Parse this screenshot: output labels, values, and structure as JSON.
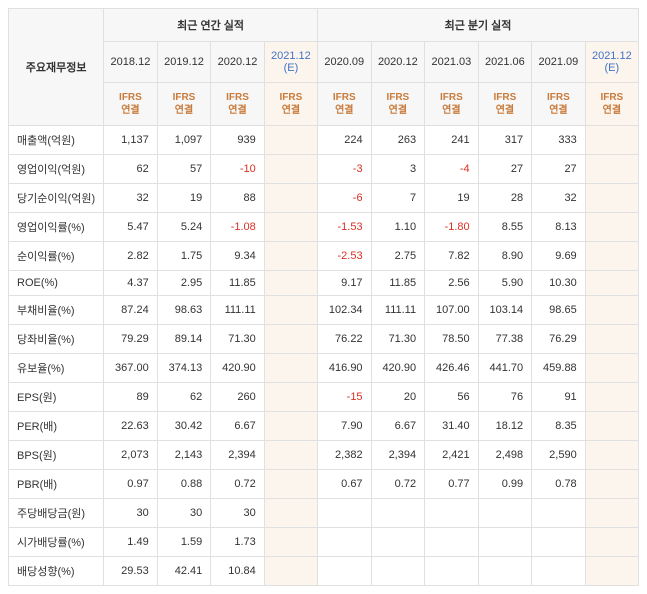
{
  "header": {
    "rowLabelTitle": "주요재무정보",
    "annualTitle": "최근 연간 실적",
    "quarterTitle": "최근 분기 실적",
    "ifrs": "IFRS",
    "consol": "연결"
  },
  "annualPeriods": [
    "2018.12",
    "2019.12",
    "2020.12",
    "2021.12 (E)"
  ],
  "annualHighlight": [
    false,
    false,
    false,
    true
  ],
  "annualEstimate": [
    false,
    false,
    false,
    true
  ],
  "quarterPeriods": [
    "2020.09",
    "2020.12",
    "2021.03",
    "2021.06",
    "2021.09",
    "2021.12 (E)"
  ],
  "quarterHighlight": [
    false,
    false,
    false,
    false,
    false,
    true
  ],
  "quarterEstimate": [
    false,
    false,
    false,
    false,
    false,
    true
  ],
  "rows": [
    {
      "label": "매출액(억원)",
      "annual": [
        "1,137",
        "1,097",
        "939",
        ""
      ],
      "quarter": [
        "224",
        "263",
        "241",
        "317",
        "333",
        ""
      ],
      "annualNeg": [
        0,
        0,
        0,
        0
      ],
      "quarterNeg": [
        0,
        0,
        0,
        0,
        0,
        0
      ]
    },
    {
      "label": "영업이익(억원)",
      "annual": [
        "62",
        "57",
        "-10",
        ""
      ],
      "quarter": [
        "-3",
        "3",
        "-4",
        "27",
        "27",
        ""
      ],
      "annualNeg": [
        0,
        0,
        1,
        0
      ],
      "quarterNeg": [
        1,
        0,
        1,
        0,
        0,
        0
      ]
    },
    {
      "label": "당기순이익(억원)",
      "annual": [
        "32",
        "19",
        "88",
        ""
      ],
      "quarter": [
        "-6",
        "7",
        "19",
        "28",
        "32",
        ""
      ],
      "annualNeg": [
        0,
        0,
        0,
        0
      ],
      "quarterNeg": [
        1,
        0,
        0,
        0,
        0,
        0
      ]
    },
    {
      "label": "영업이익률(%)",
      "annual": [
        "5.47",
        "5.24",
        "-1.08",
        ""
      ],
      "quarter": [
        "-1.53",
        "1.10",
        "-1.80",
        "8.55",
        "8.13",
        ""
      ],
      "annualNeg": [
        0,
        0,
        1,
        0
      ],
      "quarterNeg": [
        1,
        0,
        1,
        0,
        0,
        0
      ]
    },
    {
      "label": "순이익률(%)",
      "annual": [
        "2.82",
        "1.75",
        "9.34",
        ""
      ],
      "quarter": [
        "-2.53",
        "2.75",
        "7.82",
        "8.90",
        "9.69",
        ""
      ],
      "annualNeg": [
        0,
        0,
        0,
        0
      ],
      "quarterNeg": [
        1,
        0,
        0,
        0,
        0,
        0
      ]
    },
    {
      "label": "ROE(%)",
      "annual": [
        "4.37",
        "2.95",
        "11.85",
        ""
      ],
      "quarter": [
        "9.17",
        "11.85",
        "2.56",
        "5.90",
        "10.30",
        ""
      ],
      "annualNeg": [
        0,
        0,
        0,
        0
      ],
      "quarterNeg": [
        0,
        0,
        0,
        0,
        0,
        0
      ]
    },
    {
      "label": "부채비율(%)",
      "annual": [
        "87.24",
        "98.63",
        "111.11",
        ""
      ],
      "quarter": [
        "102.34",
        "111.11",
        "107.00",
        "103.14",
        "98.65",
        ""
      ],
      "annualNeg": [
        0,
        0,
        0,
        0
      ],
      "quarterNeg": [
        0,
        0,
        0,
        0,
        0,
        0
      ]
    },
    {
      "label": "당좌비율(%)",
      "annual": [
        "79.29",
        "89.14",
        "71.30",
        ""
      ],
      "quarter": [
        "76.22",
        "71.30",
        "78.50",
        "77.38",
        "76.29",
        ""
      ],
      "annualNeg": [
        0,
        0,
        0,
        0
      ],
      "quarterNeg": [
        0,
        0,
        0,
        0,
        0,
        0
      ]
    },
    {
      "label": "유보율(%)",
      "annual": [
        "367.00",
        "374.13",
        "420.90",
        ""
      ],
      "quarter": [
        "416.90",
        "420.90",
        "426.46",
        "441.70",
        "459.88",
        ""
      ],
      "annualNeg": [
        0,
        0,
        0,
        0
      ],
      "quarterNeg": [
        0,
        0,
        0,
        0,
        0,
        0
      ]
    },
    {
      "label": "EPS(원)",
      "annual": [
        "89",
        "62",
        "260",
        ""
      ],
      "quarter": [
        "-15",
        "20",
        "56",
        "76",
        "91",
        ""
      ],
      "annualNeg": [
        0,
        0,
        0,
        0
      ],
      "quarterNeg": [
        1,
        0,
        0,
        0,
        0,
        0
      ]
    },
    {
      "label": "PER(배)",
      "annual": [
        "22.63",
        "30.42",
        "6.67",
        ""
      ],
      "quarter": [
        "7.90",
        "6.67",
        "31.40",
        "18.12",
        "8.35",
        ""
      ],
      "annualNeg": [
        0,
        0,
        0,
        0
      ],
      "quarterNeg": [
        0,
        0,
        0,
        0,
        0,
        0
      ]
    },
    {
      "label": "BPS(원)",
      "annual": [
        "2,073",
        "2,143",
        "2,394",
        ""
      ],
      "quarter": [
        "2,382",
        "2,394",
        "2,421",
        "2,498",
        "2,590",
        ""
      ],
      "annualNeg": [
        0,
        0,
        0,
        0
      ],
      "quarterNeg": [
        0,
        0,
        0,
        0,
        0,
        0
      ]
    },
    {
      "label": "PBR(배)",
      "annual": [
        "0.97",
        "0.88",
        "0.72",
        ""
      ],
      "quarter": [
        "0.67",
        "0.72",
        "0.77",
        "0.99",
        "0.78",
        ""
      ],
      "annualNeg": [
        0,
        0,
        0,
        0
      ],
      "quarterNeg": [
        0,
        0,
        0,
        0,
        0,
        0
      ]
    },
    {
      "label": "주당배당금(원)",
      "annual": [
        "30",
        "30",
        "30",
        ""
      ],
      "quarter": [
        "",
        "",
        "",
        "",
        "",
        ""
      ],
      "annualNeg": [
        0,
        0,
        0,
        0
      ],
      "quarterNeg": [
        0,
        0,
        0,
        0,
        0,
        0
      ]
    },
    {
      "label": "시가배당률(%)",
      "annual": [
        "1.49",
        "1.59",
        "1.73",
        ""
      ],
      "quarter": [
        "",
        "",
        "",
        "",
        "",
        ""
      ],
      "annualNeg": [
        0,
        0,
        0,
        0
      ],
      "quarterNeg": [
        0,
        0,
        0,
        0,
        0,
        0
      ]
    },
    {
      "label": "배당성향(%)",
      "annual": [
        "29.53",
        "42.41",
        "10.84",
        ""
      ],
      "quarter": [
        "",
        "",
        "",
        "",
        "",
        ""
      ],
      "annualNeg": [
        0,
        0,
        0,
        0
      ],
      "quarterNeg": [
        0,
        0,
        0,
        0,
        0,
        0
      ]
    }
  ],
  "style": {
    "highlightBg": "#fbf5ee",
    "negColor": "#d93025",
    "ifrsColor": "#c97b3b",
    "estColor": "#4472c4"
  }
}
